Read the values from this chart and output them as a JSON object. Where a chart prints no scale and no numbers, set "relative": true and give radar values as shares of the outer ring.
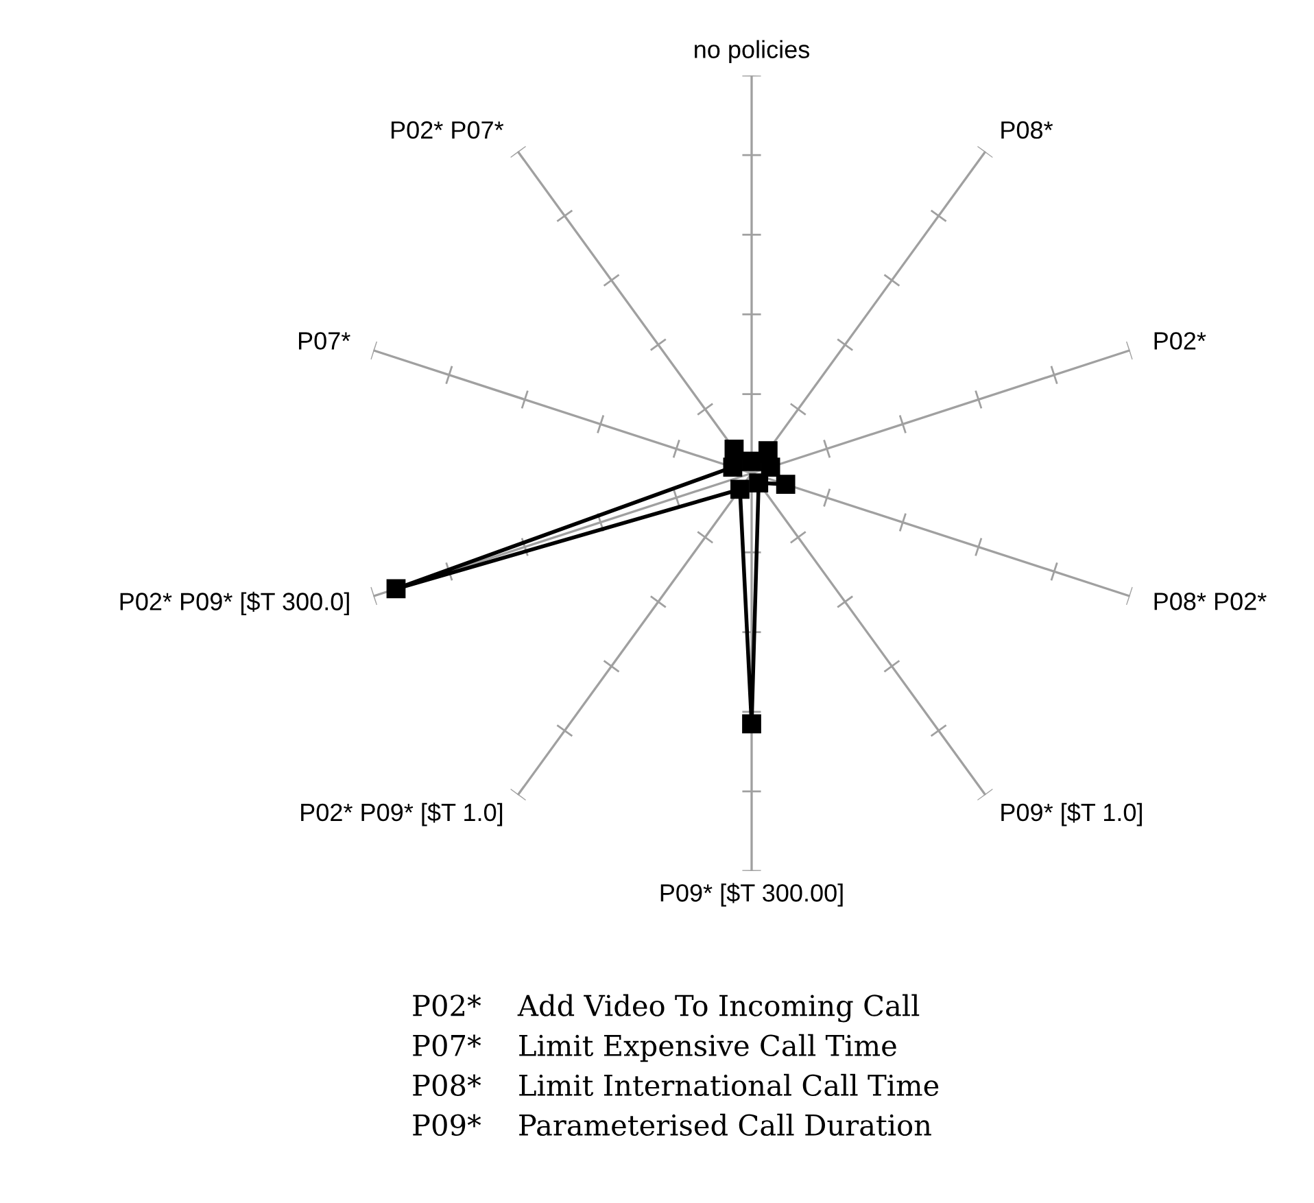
{
  "chart_data": {
    "type": "radar",
    "relative": true,
    "categories": [
      "no policies",
      "P08*",
      "P02*",
      "P08* P02*",
      "P09* [$T 1.0]",
      "P09* [$T 300.00]",
      "P02* P09* [$T 1.0]",
      "P02* P09* [$T 300.0]",
      "P07*",
      "P02* P07*"
    ],
    "series": [
      {
        "color": "#000000",
        "values": [
          0.03,
          0.07,
          0.05,
          0.09,
          0.03,
          0.63,
          0.05,
          0.94,
          0.05,
          0.075
        ]
      }
    ],
    "marker": "square",
    "line_style": "solid",
    "annotations": [
      "P02*    Add Video To Incoming Call",
      "P07*    Limit Expensive Call Time",
      "P08*    Limit International Call Time",
      "P09*    Parameterised Call Duration"
    ]
  }
}
